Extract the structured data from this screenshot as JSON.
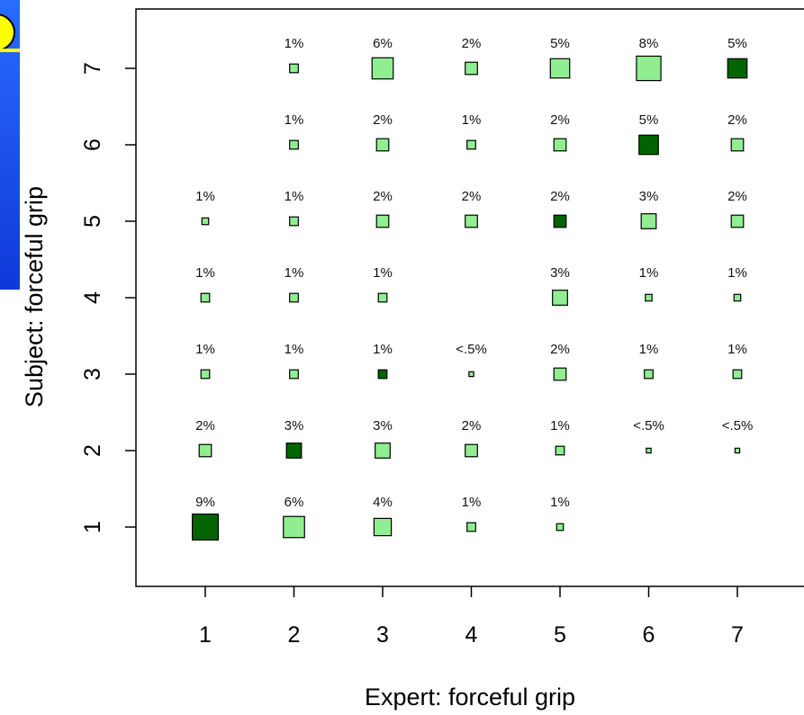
{
  "chart_data": {
    "type": "scatter",
    "subtype": "proportional-square-plot",
    "xlabel": "Expert: forceful grip",
    "ylabel": "Subject: forceful grip",
    "x_ticks": [
      "1",
      "2",
      "3",
      "4",
      "5",
      "6",
      "7"
    ],
    "y_ticks": [
      "1",
      "2",
      "3",
      "4",
      "5",
      "6",
      "7"
    ],
    "xlim": [
      0.2,
      7.6
    ],
    "ylim": [
      0.2,
      7.8
    ],
    "grid": false,
    "colors": {
      "agreement": "#006400",
      "other": "#90ee90",
      "border": "#000000"
    },
    "points": [
      {
        "x": 1,
        "y": 1,
        "pct": 9,
        "label": "9%"
      },
      {
        "x": 2,
        "y": 1,
        "pct": 6,
        "label": "6%"
      },
      {
        "x": 3,
        "y": 1,
        "pct": 4,
        "label": "4%"
      },
      {
        "x": 4,
        "y": 1,
        "pct": 1,
        "label": "1%"
      },
      {
        "x": 5,
        "y": 1,
        "pct": 0.6,
        "label": "1%"
      },
      {
        "x": 1,
        "y": 2,
        "pct": 2,
        "label": "2%"
      },
      {
        "x": 2,
        "y": 2,
        "pct": 3,
        "label": "3%"
      },
      {
        "x": 3,
        "y": 2,
        "pct": 3,
        "label": "3%"
      },
      {
        "x": 4,
        "y": 2,
        "pct": 2,
        "label": "2%"
      },
      {
        "x": 5,
        "y": 2,
        "pct": 1,
        "label": "1%"
      },
      {
        "x": 6,
        "y": 2,
        "pct": 0.3,
        "label": "<.5%"
      },
      {
        "x": 7,
        "y": 2,
        "pct": 0.3,
        "label": "<.5%"
      },
      {
        "x": 1,
        "y": 3,
        "pct": 1,
        "label": "1%"
      },
      {
        "x": 2,
        "y": 3,
        "pct": 1,
        "label": "1%"
      },
      {
        "x": 3,
        "y": 3,
        "pct": 1,
        "label": "1%"
      },
      {
        "x": 4,
        "y": 3,
        "pct": 0.3,
        "label": "<.5%"
      },
      {
        "x": 5,
        "y": 3,
        "pct": 2,
        "label": "2%"
      },
      {
        "x": 6,
        "y": 3,
        "pct": 1,
        "label": "1%"
      },
      {
        "x": 7,
        "y": 3,
        "pct": 1,
        "label": "1%"
      },
      {
        "x": 1,
        "y": 4,
        "pct": 1,
        "label": "1%"
      },
      {
        "x": 2,
        "y": 4,
        "pct": 1,
        "label": "1%"
      },
      {
        "x": 3,
        "y": 4,
        "pct": 1,
        "label": "1%"
      },
      {
        "x": 5,
        "y": 4,
        "pct": 3,
        "label": "3%"
      },
      {
        "x": 6,
        "y": 4,
        "pct": 0.6,
        "label": "1%"
      },
      {
        "x": 7,
        "y": 4,
        "pct": 0.6,
        "label": "1%"
      },
      {
        "x": 1,
        "y": 5,
        "pct": 0.6,
        "label": "1%"
      },
      {
        "x": 2,
        "y": 5,
        "pct": 1,
        "label": "1%"
      },
      {
        "x": 3,
        "y": 5,
        "pct": 2,
        "label": "2%"
      },
      {
        "x": 4,
        "y": 5,
        "pct": 2,
        "label": "2%"
      },
      {
        "x": 5,
        "y": 5,
        "pct": 2,
        "label": "2%"
      },
      {
        "x": 6,
        "y": 5,
        "pct": 3,
        "label": "3%"
      },
      {
        "x": 7,
        "y": 5,
        "pct": 2,
        "label": "2%"
      },
      {
        "x": 2,
        "y": 6,
        "pct": 1,
        "label": "1%"
      },
      {
        "x": 3,
        "y": 6,
        "pct": 2,
        "label": "2%"
      },
      {
        "x": 4,
        "y": 6,
        "pct": 1,
        "label": "1%"
      },
      {
        "x": 5,
        "y": 6,
        "pct": 2,
        "label": "2%"
      },
      {
        "x": 6,
        "y": 6,
        "pct": 5,
        "label": "5%"
      },
      {
        "x": 7,
        "y": 6,
        "pct": 2,
        "label": "2%"
      },
      {
        "x": 2,
        "y": 7,
        "pct": 1,
        "label": "1%"
      },
      {
        "x": 3,
        "y": 7,
        "pct": 6,
        "label": "6%"
      },
      {
        "x": 4,
        "y": 7,
        "pct": 2,
        "label": "2%"
      },
      {
        "x": 5,
        "y": 7,
        "pct": 5,
        "label": "5%"
      },
      {
        "x": 6,
        "y": 7,
        "pct": 8,
        "label": "8%"
      },
      {
        "x": 7,
        "y": 7,
        "pct": 5,
        "label": "5%"
      }
    ]
  }
}
